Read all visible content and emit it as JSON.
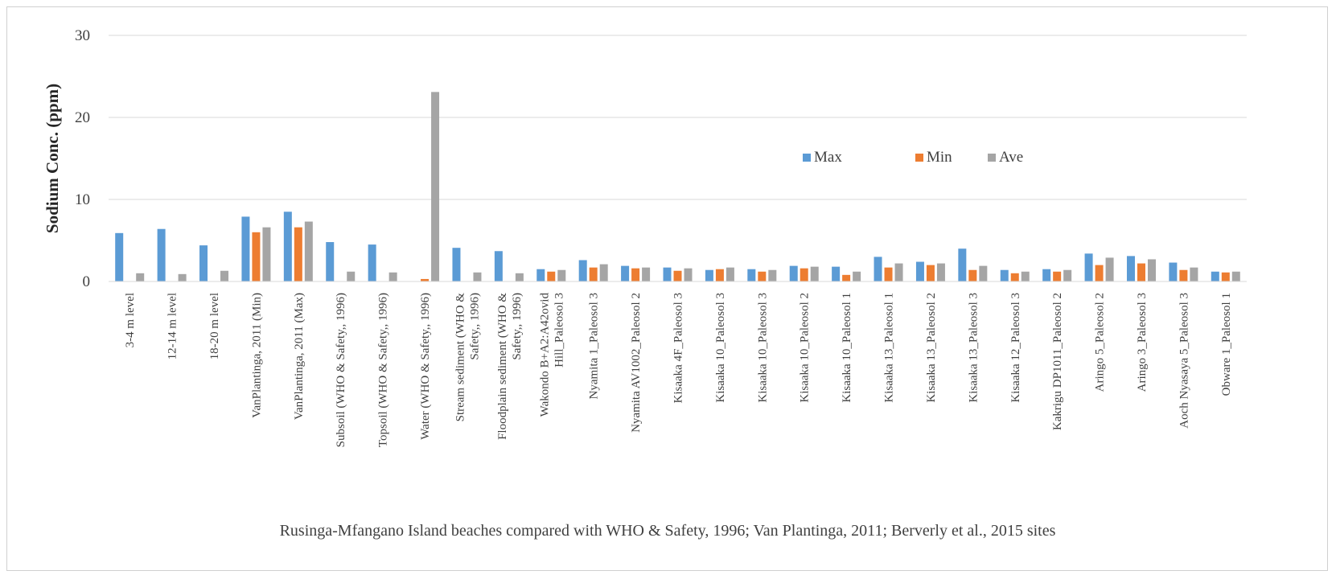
{
  "chart_data": {
    "type": "bar",
    "title": "",
    "xlabel": "Rusinga-Mfangano Island beaches compared with WHO & Safety, 1996; Van Plantinga, 2011; Berverly et al., 2015 sites",
    "ylabel": "Sodium Conc. (ppm)",
    "ylim": [
      0,
      30
    ],
    "yticks": [
      0,
      10,
      20,
      30
    ],
    "grid": true,
    "legend_position": "right-center",
    "categories": [
      [
        "3-4 m level"
      ],
      [
        "12-14 m level"
      ],
      [
        "18-20 m level"
      ],
      [
        "VanPlantinga, 2011 (Min)"
      ],
      [
        "VanPlantinga, 2011 (Max)"
      ],
      [
        "Subsoil (WHO & Safety,, 1996)"
      ],
      [
        "Topsoil (WHO & Safety,, 1996)"
      ],
      [
        "Water (WHO & Safety,, 1996)"
      ],
      [
        "Stream sediment (WHO &",
        "Safety,, 1996)"
      ],
      [
        "Floodplain sediment (WHO &",
        "Safety,, 1996)"
      ],
      [
        "Wakondo B+A2:A42ovid",
        "Hill_Paleosol 3"
      ],
      [
        "Nyamita 1_Paleosol 3"
      ],
      [
        "Nyamita AV1002_Paleosol 2"
      ],
      [
        "Kisaaka 4F_Paleosol 3"
      ],
      [
        "Kisaaka 10_Paleosol 3"
      ],
      [
        "Kisaaka 10_Paleosol 3"
      ],
      [
        "Kisaaka 10_Paleosol 2"
      ],
      [
        "Kisaaka 10_Paleosol 1"
      ],
      [
        "Kisaaka 13_Paleosol 1"
      ],
      [
        "Kisaaka 13_Paleosol 2"
      ],
      [
        "Kisaaka 13_Paleosol 3"
      ],
      [
        "Kisaaka 12_Paleosol 3"
      ],
      [
        "Kakrigu DP1011_Paleosol 2"
      ],
      [
        "Aringo 5_Paleosol 2"
      ],
      [
        "Aringo 3_Paleosol 3"
      ],
      [
        "Aoch Nyasaya 5_Paleosol 3"
      ],
      [
        "Obware 1_Paleosol 1"
      ]
    ],
    "series": [
      {
        "name": "Max",
        "color": "#5b9bd5",
        "values": [
          5.9,
          6.4,
          4.4,
          7.9,
          8.5,
          4.8,
          4.5,
          null,
          4.1,
          3.7,
          1.5,
          2.6,
          1.9,
          1.7,
          1.4,
          1.5,
          1.9,
          1.8,
          3.0,
          2.4,
          4.0,
          1.4,
          1.5,
          3.4,
          3.1,
          2.3,
          1.2
        ]
      },
      {
        "name": "Min",
        "color": "#ed7d31",
        "values": [
          null,
          null,
          null,
          6.0,
          6.6,
          null,
          null,
          0.3,
          null,
          null,
          1.2,
          1.7,
          1.6,
          1.3,
          1.5,
          1.2,
          1.6,
          0.8,
          1.7,
          2.0,
          1.4,
          1.0,
          1.2,
          2.0,
          2.2,
          1.4,
          1.1
        ]
      },
      {
        "name": "Ave",
        "color": "#a5a5a5",
        "values": [
          1.0,
          0.9,
          1.3,
          6.6,
          7.3,
          1.2,
          1.1,
          23.1,
          1.1,
          1.0,
          1.4,
          2.1,
          1.7,
          1.6,
          1.7,
          1.4,
          1.8,
          1.2,
          2.2,
          2.2,
          1.9,
          1.2,
          1.4,
          2.9,
          2.7,
          1.7,
          1.2
        ]
      }
    ]
  }
}
